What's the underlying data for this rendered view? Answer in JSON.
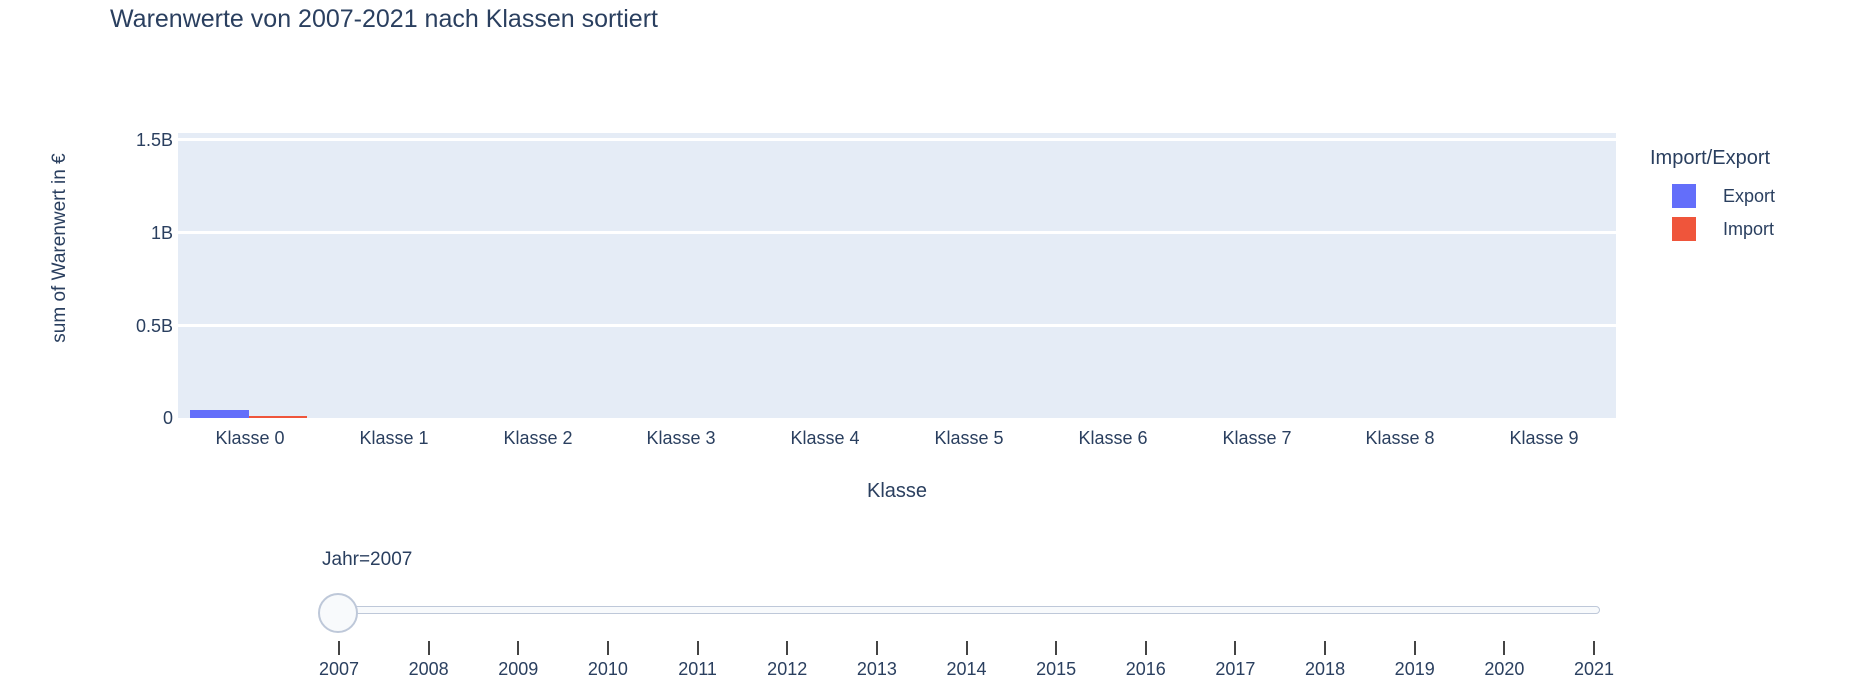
{
  "title": "Warenwerte von 2007-2021 nach Klassen sortiert",
  "chart_data": {
    "type": "bar",
    "title": "Warenwerte von 2007-2021 nach Klassen sortiert",
    "xlabel": "Klasse",
    "ylabel": "sum of Warenwert in €",
    "categories": [
      "Klasse 0",
      "Klasse 1",
      "Klasse 2",
      "Klasse 3",
      "Klasse 4",
      "Klasse 5",
      "Klasse 6",
      "Klasse 7",
      "Klasse 8",
      "Klasse 9"
    ],
    "series": [
      {
        "name": "Export",
        "color": "#636efa",
        "values": [
          45000000,
          0,
          0,
          0,
          0,
          0,
          0,
          0,
          0,
          0
        ]
      },
      {
        "name": "Import",
        "color": "#ef553b",
        "values": [
          13000000,
          0,
          0,
          0,
          0,
          0,
          0,
          0,
          0,
          0
        ]
      }
    ],
    "ylim": [
      0,
      1530000000
    ],
    "ytick_values": [
      0,
      500000000,
      1000000000,
      1500000000
    ],
    "ytick_labels": [
      "0",
      "0.5B",
      "1B",
      "1.5B"
    ],
    "grid": true,
    "plot_bgcolor": "#e5ecf6",
    "grid_color": "#ffffff",
    "text_color": "#2a3f5f",
    "legend_position": "right",
    "legend_title": "Import/Export"
  },
  "legend": {
    "title": "Import/Export",
    "items": [
      {
        "label": "Export",
        "color": "#636efa"
      },
      {
        "label": "Import",
        "color": "#ef553b"
      }
    ]
  },
  "slider": {
    "label": "Jahr=2007",
    "active_year": "2007",
    "years": [
      "2007",
      "2008",
      "2009",
      "2010",
      "2011",
      "2012",
      "2013",
      "2014",
      "2015",
      "2016",
      "2017",
      "2018",
      "2019",
      "2020",
      "2021"
    ]
  }
}
